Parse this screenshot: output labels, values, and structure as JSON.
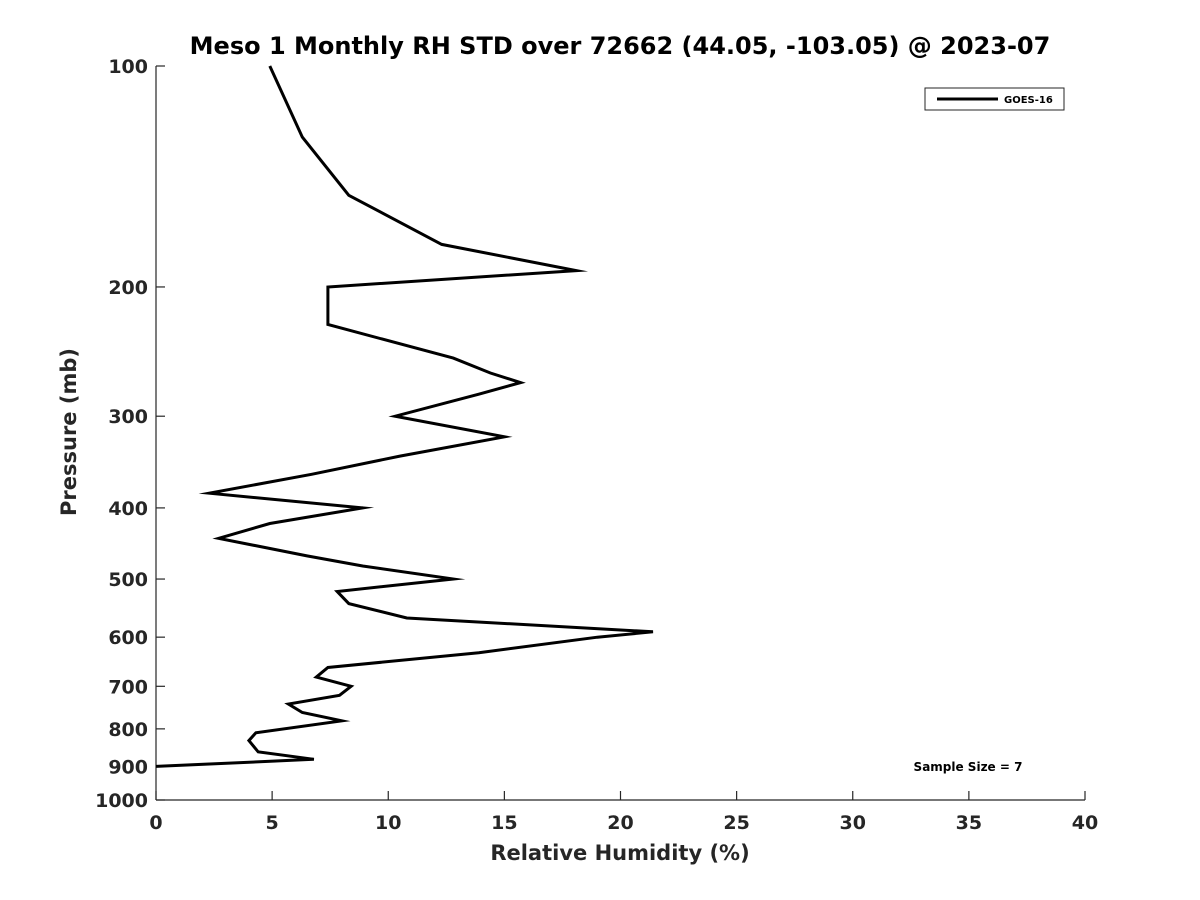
{
  "chart_data": {
    "type": "line",
    "title": "Meso 1 Monthly RH STD over 72662 (44.05, -103.05) @ 2023-07",
    "xlabel": "Relative Humidity (%)",
    "ylabel": "Pressure (mb)",
    "xlim": [
      0,
      40
    ],
    "ylim": [
      100,
      1000
    ],
    "y_scale": "log",
    "y_reversed": true,
    "x_ticks": [
      0,
      5,
      10,
      15,
      20,
      25,
      30,
      35,
      40
    ],
    "y_ticks": [
      100,
      200,
      300,
      400,
      500,
      600,
      700,
      800,
      900,
      1000
    ],
    "grid": false,
    "legend_position": "top-right",
    "series": [
      {
        "name": "GOES-16",
        "color": "#000000",
        "points": [
          {
            "x": 4.9,
            "y": 100
          },
          {
            "x": 6.3,
            "y": 125
          },
          {
            "x": 8.3,
            "y": 150
          },
          {
            "x": 12.3,
            "y": 175
          },
          {
            "x": 18.1,
            "y": 190
          },
          {
            "x": 7.4,
            "y": 200
          },
          {
            "x": 7.4,
            "y": 225
          },
          {
            "x": 12.8,
            "y": 250
          },
          {
            "x": 14.4,
            "y": 262
          },
          {
            "x": 15.7,
            "y": 270
          },
          {
            "x": 13.9,
            "y": 280
          },
          {
            "x": 10.3,
            "y": 300
          },
          {
            "x": 15.0,
            "y": 320
          },
          {
            "x": 10.5,
            "y": 340
          },
          {
            "x": 6.7,
            "y": 360
          },
          {
            "x": 2.3,
            "y": 382
          },
          {
            "x": 8.9,
            "y": 400
          },
          {
            "x": 4.9,
            "y": 420
          },
          {
            "x": 2.7,
            "y": 440
          },
          {
            "x": 6.5,
            "y": 465
          },
          {
            "x": 8.9,
            "y": 480
          },
          {
            "x": 12.8,
            "y": 500
          },
          {
            "x": 7.8,
            "y": 520
          },
          {
            "x": 8.3,
            "y": 540
          },
          {
            "x": 10.8,
            "y": 565
          },
          {
            "x": 21.4,
            "y": 590
          },
          {
            "x": 19.0,
            "y": 600
          },
          {
            "x": 13.9,
            "y": 630
          },
          {
            "x": 7.4,
            "y": 660
          },
          {
            "x": 6.9,
            "y": 680
          },
          {
            "x": 8.4,
            "y": 700
          },
          {
            "x": 7.9,
            "y": 720
          },
          {
            "x": 5.7,
            "y": 740
          },
          {
            "x": 6.3,
            "y": 760
          },
          {
            "x": 8.0,
            "y": 780
          },
          {
            "x": 4.3,
            "y": 810
          },
          {
            "x": 4.0,
            "y": 830
          },
          {
            "x": 4.4,
            "y": 860
          },
          {
            "x": 6.8,
            "y": 880
          },
          {
            "x": 0.0,
            "y": 900
          }
        ]
      }
    ],
    "annotations": [
      {
        "text": "Sample Size = 7",
        "position": "bottom-right"
      }
    ]
  }
}
